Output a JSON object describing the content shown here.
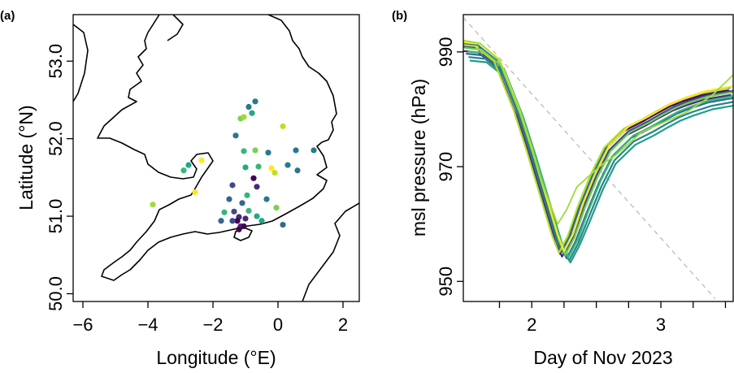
{
  "chart_data": [
    {
      "panel": "(a)",
      "type": "scatter",
      "xlabel": "Longitude (°E)",
      "ylabel": "Latitude (°N)",
      "xlim": [
        -6.3,
        2.5
      ],
      "ylim": [
        49.9,
        53.6
      ],
      "xticks": [
        -6,
        -4,
        -2,
        0,
        2
      ],
      "xtick_labels": [
        "−6",
        "−4",
        "−2",
        "0",
        "2"
      ],
      "yticks": [
        50.0,
        51.0,
        52.0,
        53.0
      ],
      "ytick_labels": [
        "50.0",
        "51.0",
        "52.0",
        "53.0"
      ],
      "grid": false,
      "points": [
        {
          "x": -0.7,
          "y": 52.48,
          "color": "#2a788e"
        },
        {
          "x": -0.9,
          "y": 52.41,
          "color": "#2a788e"
        },
        {
          "x": -0.8,
          "y": 52.33,
          "color": "#22a884"
        },
        {
          "x": -1.15,
          "y": 52.26,
          "color": "#7ad151"
        },
        {
          "x": -1.05,
          "y": 52.28,
          "color": "#a0da39"
        },
        {
          "x": -1.3,
          "y": 52.04,
          "color": "#2a788e"
        },
        {
          "x": 0.15,
          "y": 52.16,
          "color": "#bddf26"
        },
        {
          "x": -2.35,
          "y": 51.72,
          "color": "#fde725"
        },
        {
          "x": -2.75,
          "y": 51.66,
          "color": "#22a884"
        },
        {
          "x": -2.9,
          "y": 51.59,
          "color": "#35b779"
        },
        {
          "x": -1.05,
          "y": 51.84,
          "color": "#35b779"
        },
        {
          "x": -0.7,
          "y": 51.85,
          "color": "#7ad151"
        },
        {
          "x": -0.3,
          "y": 51.82,
          "color": "#2a788e"
        },
        {
          "x": 0.55,
          "y": 51.85,
          "color": "#2a788e"
        },
        {
          "x": 1.1,
          "y": 51.85,
          "color": "#2a788e"
        },
        {
          "x": -1.0,
          "y": 51.63,
          "color": "#22a884"
        },
        {
          "x": -0.6,
          "y": 51.64,
          "color": "#35b779"
        },
        {
          "x": 0.3,
          "y": 51.66,
          "color": "#2a788e"
        },
        {
          "x": -0.2,
          "y": 51.62,
          "color": "#fde725"
        },
        {
          "x": -0.1,
          "y": 51.56,
          "color": "#bddf26"
        },
        {
          "x": -0.75,
          "y": 51.49,
          "color": "#440154"
        },
        {
          "x": 0.6,
          "y": 51.59,
          "color": "#2a788e"
        },
        {
          "x": -0.65,
          "y": 51.38,
          "color": "#482878"
        },
        {
          "x": -0.95,
          "y": 51.27,
          "color": "#35b779"
        },
        {
          "x": -1.4,
          "y": 51.4,
          "color": "#3e4989"
        },
        {
          "x": -2.55,
          "y": 51.31,
          "color": "#fde725"
        },
        {
          "x": -1.5,
          "y": 51.22,
          "color": "#31688e"
        },
        {
          "x": -1.1,
          "y": 51.17,
          "color": "#31688e"
        },
        {
          "x": -0.35,
          "y": 51.22,
          "color": "#2a788e"
        },
        {
          "x": -1.35,
          "y": 51.06,
          "color": "#3e4989"
        },
        {
          "x": -0.05,
          "y": 51.11,
          "color": "#7ad151"
        },
        {
          "x": -3.85,
          "y": 51.15,
          "color": "#a0da39"
        },
        {
          "x": -1.65,
          "y": 51.05,
          "color": "#35b779"
        },
        {
          "x": -0.9,
          "y": 51.07,
          "color": "#35b779"
        },
        {
          "x": -1.0,
          "y": 50.97,
          "color": "#482878"
        },
        {
          "x": -0.65,
          "y": 51.0,
          "color": "#22a884"
        },
        {
          "x": -1.2,
          "y": 50.99,
          "color": "#482878"
        },
        {
          "x": -1.25,
          "y": 50.94,
          "color": "#440154"
        },
        {
          "x": -1.4,
          "y": 50.94,
          "color": "#3e4989"
        },
        {
          "x": -1.75,
          "y": 50.94,
          "color": "#31688e"
        },
        {
          "x": -0.5,
          "y": 50.94,
          "color": "#22a884"
        },
        {
          "x": -1.15,
          "y": 50.87,
          "color": "#482878"
        },
        {
          "x": -1.05,
          "y": 50.87,
          "color": "#440154"
        },
        {
          "x": -1.2,
          "y": 50.83,
          "color": "#440154"
        },
        {
          "x": 0.15,
          "y": 50.89,
          "color": "#31688e"
        }
      ]
    },
    {
      "panel": "(b)",
      "type": "line",
      "xlabel": "Day of Nov 2023",
      "ylabel": "msl pressure (hPa)",
      "xlim": [
        1.47,
        3.56
      ],
      "ylim": [
        946.5,
        996.5
      ],
      "xticks": [
        2,
        3
      ],
      "xtick_labels": [
        "2",
        "3"
      ],
      "minor_xticks": [
        1.75,
        2.25,
        2.5,
        2.75,
        3.25,
        3.5
      ],
      "yticks": [
        950,
        970,
        990
      ],
      "ytick_labels": [
        "950",
        "970",
        "990"
      ],
      "grid": false,
      "ensemble_template": {
        "x": [
          1.47,
          1.6,
          1.75,
          1.9,
          2.0,
          2.1,
          2.2,
          2.25,
          2.32,
          2.4,
          2.5,
          2.6,
          2.75,
          2.9,
          3.0,
          3.1,
          3.2,
          3.35,
          3.5,
          3.56
        ],
        "y": [
          990.5,
          990.2,
          987.5,
          979.0,
          972.0,
          964.5,
          957.0,
          954.5,
          957.5,
          962.5,
          968.0,
          972.5,
          975.8,
          977.5,
          978.8,
          980.0,
          980.9,
          982.0,
          982.6,
          982.8
        ]
      },
      "members": [
        {
          "dx": -0.03,
          "dy": 0.5,
          "color": "#440154"
        },
        {
          "dx": -0.015,
          "dy": -0.3,
          "color": "#482878"
        },
        {
          "dx": 0.0,
          "dy": 0.4,
          "color": "#3e4989"
        },
        {
          "dx": 0.02,
          "dy": -0.8,
          "color": "#31688e"
        },
        {
          "dx": 0.04,
          "dy": -1.4,
          "color": "#26828e"
        },
        {
          "dx": 0.05,
          "dy": -2.0,
          "color": "#1f9e89"
        },
        {
          "dx": -0.02,
          "dy": 1.0,
          "color": "#2a788e"
        },
        {
          "dx": 0.035,
          "dy": -0.4,
          "color": "#35b779"
        },
        {
          "dx": 0.01,
          "dy": 0.2,
          "color": "#6ece58"
        },
        {
          "dx": -0.04,
          "dy": 0.8,
          "color": "#b5de2b"
        },
        {
          "dx": 0.0,
          "dy": 1.2,
          "color": "#fde725"
        }
      ],
      "outlier": {
        "color": "#a0da39",
        "x": [
          1.47,
          1.6,
          1.75,
          1.9,
          2.0,
          2.1,
          2.2,
          2.27,
          2.35,
          2.45,
          2.55,
          2.65,
          2.75,
          2.85,
          3.0,
          3.2,
          3.4,
          3.56
        ],
        "y": [
          992.0,
          991.5,
          988.5,
          980.0,
          973.0,
          966.0,
          960.0,
          962.5,
          966.5,
          968.5,
          970.5,
          972.0,
          974.0,
          976.0,
          977.5,
          979.5,
          982.5,
          986.0
        ]
      },
      "reference_line": {
        "style": "dashed",
        "color": "#bbbbbb",
        "x": [
          1.47,
          3.42
        ],
        "y": [
          996.0,
          947.0
        ]
      }
    }
  ]
}
